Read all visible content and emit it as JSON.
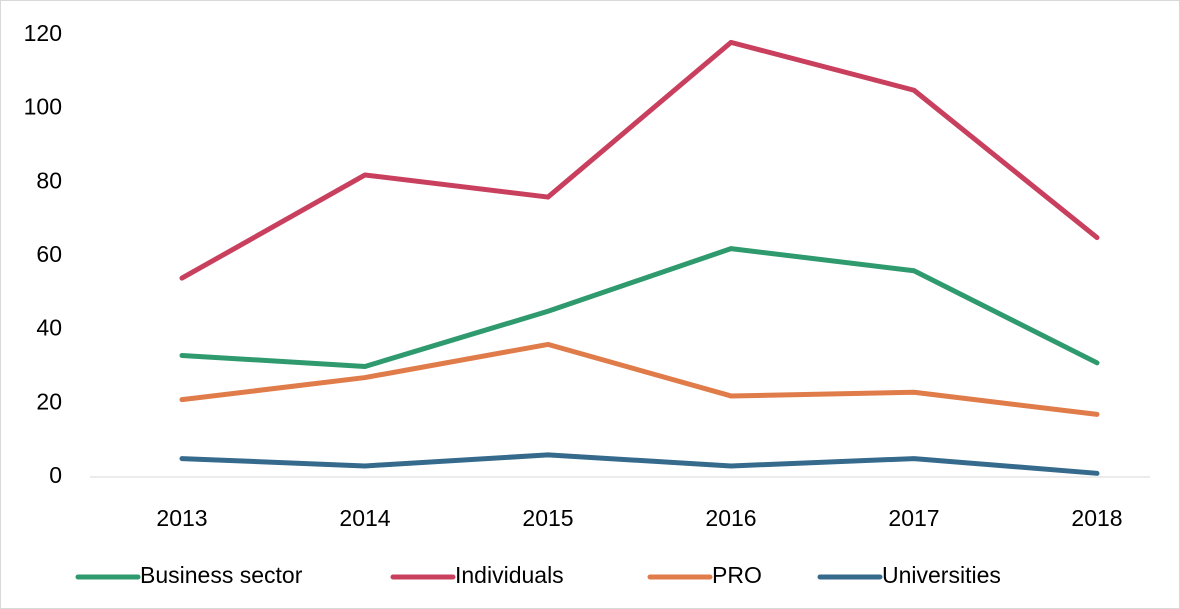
{
  "chart_data": {
    "type": "line",
    "categories": [
      "2013",
      "2014",
      "2015",
      "2016",
      "2017",
      "2018"
    ],
    "series": [
      {
        "name": "Business sector",
        "color": "#2f9a6e",
        "values": [
          33,
          30,
          45,
          62,
          56,
          31
        ]
      },
      {
        "name": "Individuals",
        "color": "#c9405f",
        "values": [
          54,
          82,
          76,
          118,
          105,
          65
        ]
      },
      {
        "name": "PRO",
        "color": "#e07b4a",
        "values": [
          21,
          27,
          36,
          22,
          23,
          17
        ]
      },
      {
        "name": "Universities",
        "color": "#356a8c",
        "values": [
          5,
          3,
          6,
          3,
          5,
          1
        ]
      }
    ],
    "ylim": [
      0,
      120
    ],
    "yticks": [
      0,
      20,
      40,
      60,
      80,
      100,
      120
    ],
    "grid": false,
    "legend": "bottom"
  }
}
